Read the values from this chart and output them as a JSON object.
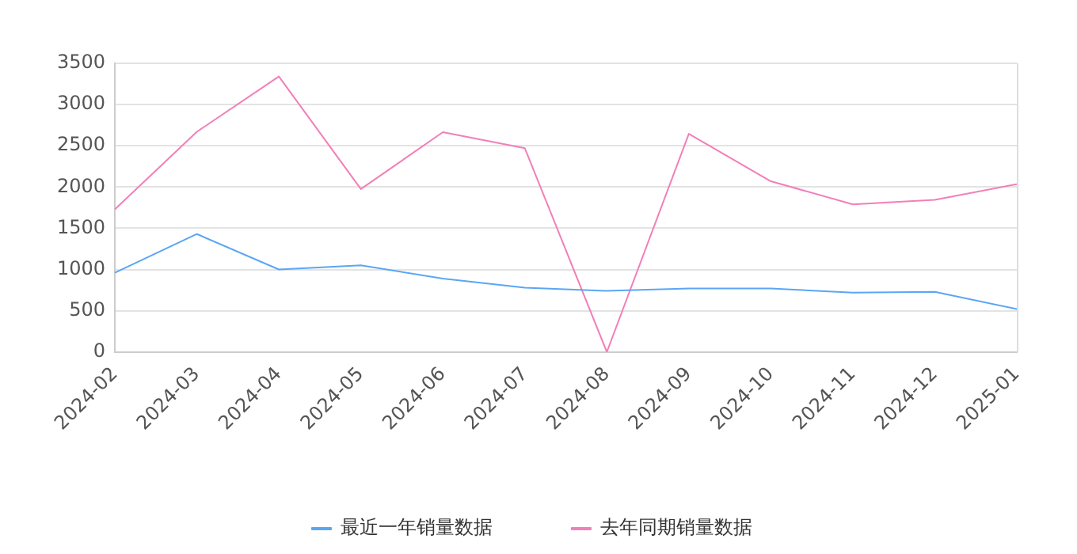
{
  "chart_data": {
    "type": "line",
    "categories": [
      "2024-02",
      "2024-03",
      "2024-04",
      "2024-05",
      "2024-06",
      "2024-07",
      "2024-08",
      "2024-09",
      "2024-10",
      "2024-11",
      "2024-12",
      "2025-01"
    ],
    "series": [
      {
        "name": "最近一年销量数据",
        "color": "#5aa6f5",
        "values": [
          960,
          1430,
          1000,
          1050,
          890,
          780,
          740,
          770,
          770,
          720,
          730,
          520
        ]
      },
      {
        "name": "去年同期销量数据",
        "color": "#f27fb8",
        "values": [
          1730,
          2670,
          3340,
          1975,
          2665,
          2470,
          0,
          2645,
          2070,
          1790,
          1845,
          2035
        ]
      }
    ],
    "ylim": [
      0,
      3500
    ],
    "yticks": [
      0,
      500,
      1000,
      1500,
      2000,
      2500,
      3000,
      3500
    ],
    "grid": "y",
    "legend": "bottom",
    "marker": "none",
    "line_style": "solid"
  }
}
